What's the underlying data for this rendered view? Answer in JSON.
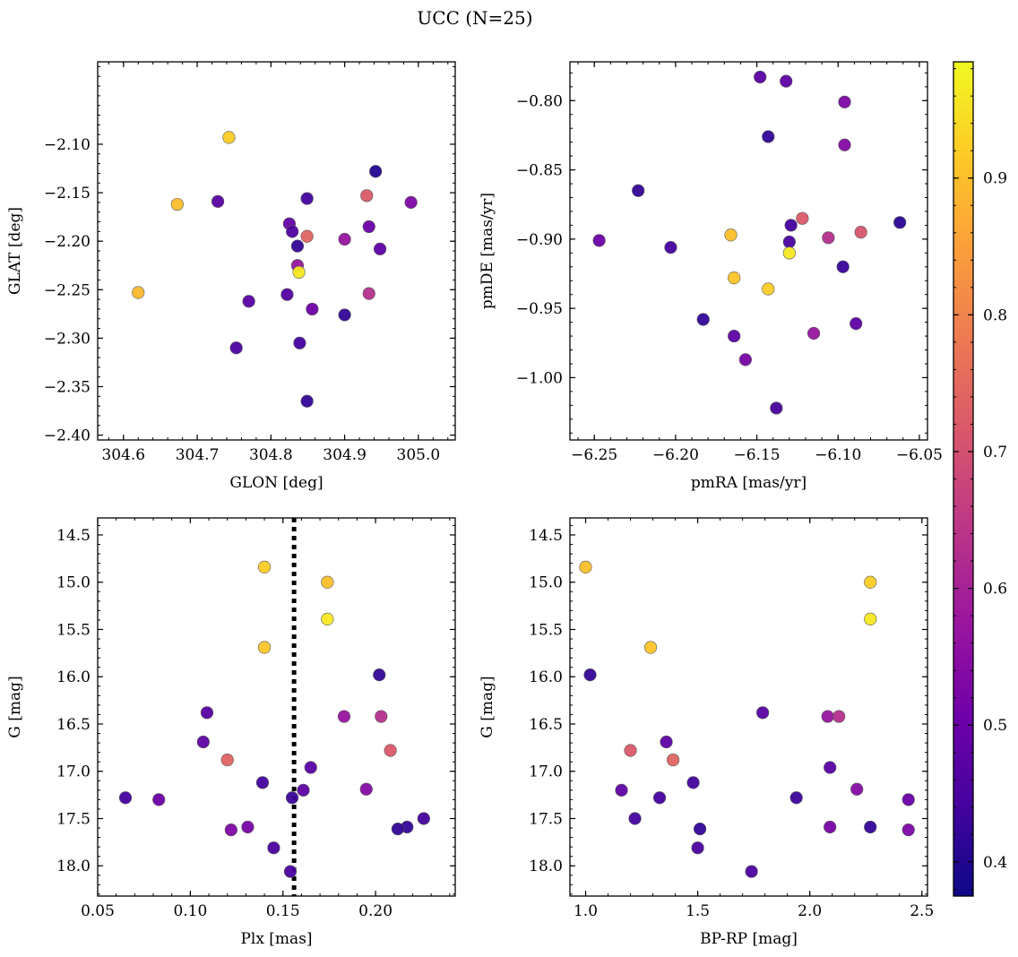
{
  "figure": {
    "title": "UCC (N=25)"
  },
  "colorbar": {
    "cmap": [
      "#0d0887",
      "#46039f",
      "#7201a8",
      "#9c179e",
      "#bd3786",
      "#d8576b",
      "#ed7953",
      "#fb9f3a",
      "#fdca26",
      "#f0f921"
    ],
    "range": [
      0.375,
      0.985
    ],
    "ticks": [
      0.4,
      0.5,
      0.6,
      0.7,
      0.8,
      0.9
    ],
    "tick_labels": [
      "0.4",
      "0.5",
      "0.6",
      "0.7",
      "0.8",
      "0.9"
    ]
  },
  "chart_data": [
    {
      "type": "scatter",
      "id": "glon-glat",
      "xlabel": "GLON [deg]",
      "ylabel": "GLAT [deg]",
      "xlim": [
        304.565,
        305.05
      ],
      "ylim": [
        -2.405,
        -2.015
      ],
      "yinverted": false,
      "xticks": [
        304.6,
        304.7,
        304.8,
        304.9,
        305.0
      ],
      "xtick_labels": [
        "304.6",
        "304.7",
        "304.8",
        "304.9",
        "305.0"
      ],
      "yticks": [
        -2.1,
        -2.15,
        -2.2,
        -2.25,
        -2.3,
        -2.35,
        -2.4
      ],
      "ytick_labels": [
        "−2.10",
        "−2.15",
        "−2.20",
        "−2.25",
        "−2.30",
        "−2.35",
        "−2.40"
      ],
      "points": [
        {
          "x": 304.62,
          "y": -2.253,
          "p": 0.89
        },
        {
          "x": 304.673,
          "y": -2.162,
          "p": 0.9
        },
        {
          "x": 304.743,
          "y": -2.093,
          "p": 0.92
        },
        {
          "x": 304.728,
          "y": -2.159,
          "p": 0.47
        },
        {
          "x": 304.77,
          "y": -2.262,
          "p": 0.47
        },
        {
          "x": 304.753,
          "y": -2.31,
          "p": 0.45
        },
        {
          "x": 304.825,
          "y": -2.182,
          "p": 0.49
        },
        {
          "x": 304.829,
          "y": -2.19,
          "p": 0.46
        },
        {
          "x": 304.836,
          "y": -2.205,
          "p": 0.42
        },
        {
          "x": 304.836,
          "y": -2.225,
          "p": 0.57
        },
        {
          "x": 304.838,
          "y": -2.232,
          "p": 0.96
        },
        {
          "x": 304.822,
          "y": -2.255,
          "p": 0.46
        },
        {
          "x": 304.849,
          "y": -2.156,
          "p": 0.44
        },
        {
          "x": 304.849,
          "y": -2.195,
          "p": 0.74
        },
        {
          "x": 304.856,
          "y": -2.27,
          "p": 0.5
        },
        {
          "x": 304.839,
          "y": -2.305,
          "p": 0.44
        },
        {
          "x": 304.849,
          "y": -2.365,
          "p": 0.42
        },
        {
          "x": 304.9,
          "y": -2.198,
          "p": 0.57
        },
        {
          "x": 304.9,
          "y": -2.276,
          "p": 0.42
        },
        {
          "x": 304.93,
          "y": -2.153,
          "p": 0.72
        },
        {
          "x": 304.933,
          "y": -2.185,
          "p": 0.5
        },
        {
          "x": 304.933,
          "y": -2.254,
          "p": 0.63
        },
        {
          "x": 304.942,
          "y": -2.128,
          "p": 0.4
        },
        {
          "x": 304.948,
          "y": -2.208,
          "p": 0.48
        },
        {
          "x": 304.99,
          "y": -2.16,
          "p": 0.53
        }
      ]
    },
    {
      "type": "scatter",
      "id": "pmra-pmde",
      "xlabel": "pmRA [mas/yr]",
      "ylabel": "pmDE [mas/yr]",
      "xlim": [
        -6.265,
        -6.045
      ],
      "ylim": [
        -1.045,
        -0.772
      ],
      "yinverted": false,
      "xticks": [
        -6.25,
        -6.2,
        -6.15,
        -6.1,
        -6.05
      ],
      "xtick_labels": [
        "−6.25",
        "−6.20",
        "−6.15",
        "−6.10",
        "−6.05"
      ],
      "yticks": [
        -0.8,
        -0.85,
        -0.9,
        -0.95,
        -1.0
      ],
      "ytick_labels": [
        "−0.80",
        "−0.85",
        "−0.90",
        "−0.95",
        "−1.00"
      ],
      "points": [
        {
          "x": -6.247,
          "y": -0.901,
          "p": 0.5
        },
        {
          "x": -6.223,
          "y": -0.865,
          "p": 0.42
        },
        {
          "x": -6.203,
          "y": -0.906,
          "p": 0.44
        },
        {
          "x": -6.183,
          "y": -0.958,
          "p": 0.42
        },
        {
          "x": -6.166,
          "y": -0.897,
          "p": 0.9
        },
        {
          "x": -6.164,
          "y": -0.928,
          "p": 0.91
        },
        {
          "x": -6.164,
          "y": -0.97,
          "p": 0.48
        },
        {
          "x": -6.157,
          "y": -0.987,
          "p": 0.52
        },
        {
          "x": -6.148,
          "y": -0.783,
          "p": 0.47
        },
        {
          "x": -6.143,
          "y": -0.826,
          "p": 0.42
        },
        {
          "x": -6.143,
          "y": -0.936,
          "p": 0.92
        },
        {
          "x": -6.138,
          "y": -1.022,
          "p": 0.44
        },
        {
          "x": -6.132,
          "y": -0.786,
          "p": 0.48
        },
        {
          "x": -6.13,
          "y": -0.902,
          "p": 0.45
        },
        {
          "x": -6.13,
          "y": -0.91,
          "p": 0.96
        },
        {
          "x": -6.129,
          "y": -0.89,
          "p": 0.44
        },
        {
          "x": -6.122,
          "y": -0.885,
          "p": 0.72
        },
        {
          "x": -6.115,
          "y": -0.968,
          "p": 0.57
        },
        {
          "x": -6.106,
          "y": -0.899,
          "p": 0.63
        },
        {
          "x": -6.096,
          "y": -0.801,
          "p": 0.53
        },
        {
          "x": -6.096,
          "y": -0.832,
          "p": 0.54
        },
        {
          "x": -6.097,
          "y": -0.92,
          "p": 0.43
        },
        {
          "x": -6.089,
          "y": -0.961,
          "p": 0.48
        },
        {
          "x": -6.086,
          "y": -0.895,
          "p": 0.71
        },
        {
          "x": -6.062,
          "y": -0.888,
          "p": 0.41
        }
      ]
    },
    {
      "type": "scatter",
      "id": "plx-g",
      "xlabel": "Plx [mas]",
      "ylabel": "G [mag]",
      "xlim": [
        0.05,
        0.243
      ],
      "ylim": [
        18.32,
        14.32
      ],
      "yinverted": true,
      "xticks": [
        0.05,
        0.1,
        0.15,
        0.2
      ],
      "xtick_labels": [
        "0.05",
        "0.10",
        "0.15",
        "0.20"
      ],
      "yticks": [
        14.5,
        15.0,
        15.5,
        16.0,
        16.5,
        17.0,
        17.5,
        18.0
      ],
      "ytick_labels": [
        "14.5",
        "15.0",
        "15.5",
        "16.0",
        "16.5",
        "17.0",
        "17.5",
        "18.0"
      ],
      "vline": {
        "x": 0.156,
        "style": "dotted"
      },
      "points": [
        {
          "x": 0.14,
          "y": 14.84,
          "p": 0.92
        },
        {
          "x": 0.174,
          "y": 15.0,
          "p": 0.9
        },
        {
          "x": 0.174,
          "y": 15.39,
          "p": 0.96
        },
        {
          "x": 0.14,
          "y": 15.69,
          "p": 0.91
        },
        {
          "x": 0.202,
          "y": 15.98,
          "p": 0.42
        },
        {
          "x": 0.109,
          "y": 16.38,
          "p": 0.47
        },
        {
          "x": 0.183,
          "y": 16.42,
          "p": 0.57
        },
        {
          "x": 0.203,
          "y": 16.42,
          "p": 0.63
        },
        {
          "x": 0.107,
          "y": 16.69,
          "p": 0.48
        },
        {
          "x": 0.208,
          "y": 16.78,
          "p": 0.72
        },
        {
          "x": 0.12,
          "y": 16.88,
          "p": 0.74
        },
        {
          "x": 0.165,
          "y": 16.96,
          "p": 0.47
        },
        {
          "x": 0.139,
          "y": 17.12,
          "p": 0.44
        },
        {
          "x": 0.195,
          "y": 17.19,
          "p": 0.54
        },
        {
          "x": 0.161,
          "y": 17.2,
          "p": 0.48
        },
        {
          "x": 0.065,
          "y": 17.28,
          "p": 0.44
        },
        {
          "x": 0.155,
          "y": 17.28,
          "p": 0.43
        },
        {
          "x": 0.083,
          "y": 17.3,
          "p": 0.5
        },
        {
          "x": 0.226,
          "y": 17.5,
          "p": 0.44
        },
        {
          "x": 0.131,
          "y": 17.59,
          "p": 0.52
        },
        {
          "x": 0.217,
          "y": 17.59,
          "p": 0.42
        },
        {
          "x": 0.212,
          "y": 17.61,
          "p": 0.42
        },
        {
          "x": 0.122,
          "y": 17.62,
          "p": 0.53
        },
        {
          "x": 0.145,
          "y": 17.81,
          "p": 0.45
        },
        {
          "x": 0.154,
          "y": 18.06,
          "p": 0.45
        }
      ]
    },
    {
      "type": "scatter",
      "id": "bprp-g",
      "xlabel": "BP-RP [mag]",
      "ylabel": "G [mag]",
      "xlim": [
        0.93,
        2.525
      ],
      "ylim": [
        18.32,
        14.32
      ],
      "yinverted": true,
      "xticks": [
        1.0,
        1.5,
        2.0,
        2.5
      ],
      "xtick_labels": [
        "1.0",
        "1.5",
        "2.0",
        "2.5"
      ],
      "yticks": [
        14.5,
        15.0,
        15.5,
        16.0,
        16.5,
        17.0,
        17.5,
        18.0
      ],
      "ytick_labels": [
        "14.5",
        "15.0",
        "15.5",
        "16.0",
        "16.5",
        "17.0",
        "17.5",
        "18.0"
      ],
      "points": [
        {
          "x": 1.0,
          "y": 14.84,
          "p": 0.9
        },
        {
          "x": 2.27,
          "y": 15.0,
          "p": 0.92
        },
        {
          "x": 2.27,
          "y": 15.39,
          "p": 0.96
        },
        {
          "x": 1.29,
          "y": 15.69,
          "p": 0.91
        },
        {
          "x": 1.02,
          "y": 15.98,
          "p": 0.42
        },
        {
          "x": 1.79,
          "y": 16.38,
          "p": 0.47
        },
        {
          "x": 2.08,
          "y": 16.42,
          "p": 0.57
        },
        {
          "x": 2.13,
          "y": 16.42,
          "p": 0.63
        },
        {
          "x": 1.36,
          "y": 16.69,
          "p": 0.48
        },
        {
          "x": 1.2,
          "y": 16.78,
          "p": 0.72
        },
        {
          "x": 1.39,
          "y": 16.88,
          "p": 0.74
        },
        {
          "x": 2.09,
          "y": 16.96,
          "p": 0.47
        },
        {
          "x": 1.48,
          "y": 17.12,
          "p": 0.44
        },
        {
          "x": 2.21,
          "y": 17.19,
          "p": 0.54
        },
        {
          "x": 1.16,
          "y": 17.2,
          "p": 0.48
        },
        {
          "x": 1.33,
          "y": 17.28,
          "p": 0.44
        },
        {
          "x": 1.94,
          "y": 17.28,
          "p": 0.43
        },
        {
          "x": 2.44,
          "y": 17.3,
          "p": 0.5
        },
        {
          "x": 1.22,
          "y": 17.5,
          "p": 0.44
        },
        {
          "x": 2.09,
          "y": 17.59,
          "p": 0.52
        },
        {
          "x": 2.27,
          "y": 17.59,
          "p": 0.42
        },
        {
          "x": 1.51,
          "y": 17.61,
          "p": 0.42
        },
        {
          "x": 2.44,
          "y": 17.62,
          "p": 0.53
        },
        {
          "x": 1.5,
          "y": 17.81,
          "p": 0.45
        },
        {
          "x": 1.74,
          "y": 18.06,
          "p": 0.45
        }
      ]
    }
  ]
}
